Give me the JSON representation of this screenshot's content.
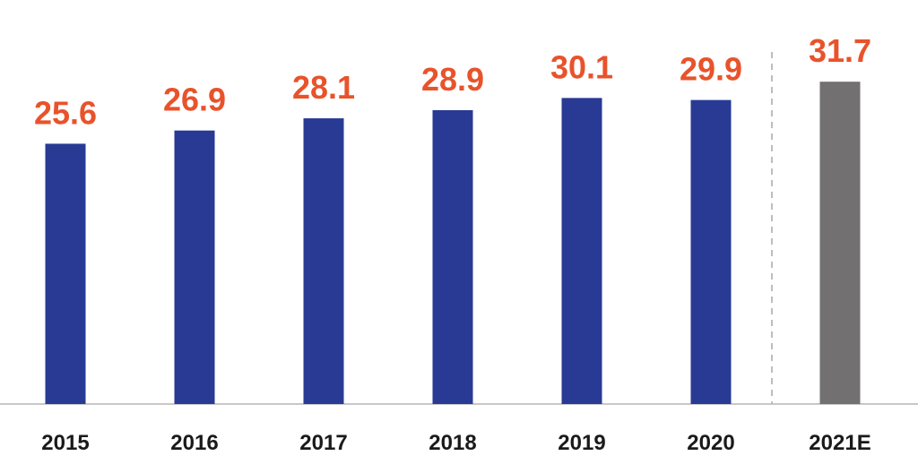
{
  "chart_data": {
    "type": "bar",
    "categories": [
      "2015",
      "2016",
      "2017",
      "2018",
      "2019",
      "2020",
      "2021E"
    ],
    "values": [
      25.6,
      26.9,
      28.1,
      28.9,
      30.1,
      29.9,
      31.7
    ],
    "value_labels": [
      "25.6",
      "26.9",
      "28.1",
      "28.9",
      "30.1",
      "29.9",
      "31.7"
    ],
    "estimated": [
      false,
      false,
      false,
      false,
      false,
      false,
      true
    ],
    "title": "",
    "xlabel": "",
    "ylabel": "",
    "ylim": [
      0,
      32
    ],
    "grid": false,
    "legend": "none",
    "forecast_separator": true
  },
  "colors": {
    "actual_bar": "#283a94",
    "estimate_bar": "#727070",
    "value_label": "#e8532b",
    "axis_line": "#c8c8c8",
    "separator": "#bdbdbd",
    "background": "#ffffff"
  }
}
